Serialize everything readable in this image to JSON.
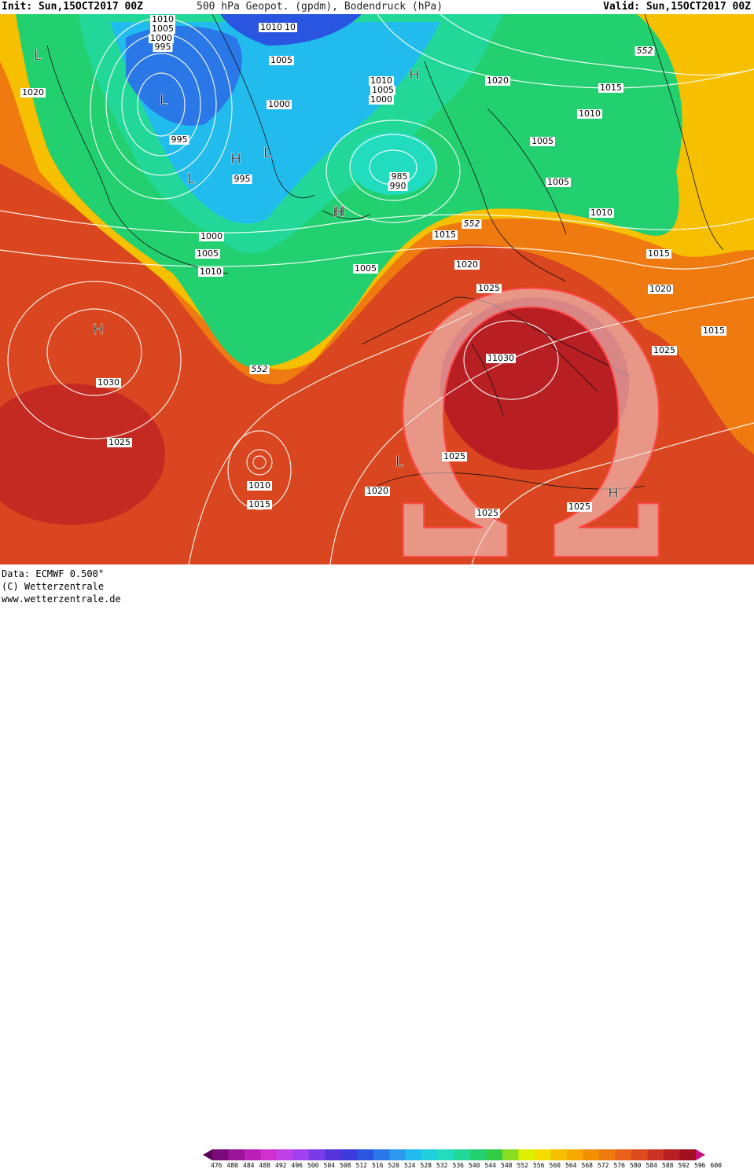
{
  "header": {
    "init": "Init: Sun,15OCT2017 00Z",
    "title": "500 hPa Geopot. (gpdm), Bodendruck (hPa)",
    "valid": "Valid: Sun,15OCT2017 00Z"
  },
  "footer": {
    "data": "Data: ECMWF  0.500°",
    "copyright": "(C) Wetterzentrale",
    "url": "www.wetterzentrale.de"
  },
  "colorbar": {
    "labels": [
      "476",
      "480",
      "484",
      "488",
      "492",
      "496",
      "500",
      "504",
      "508",
      "512",
      "516",
      "520",
      "524",
      "528",
      "532",
      "536",
      "540",
      "544",
      "548",
      "552",
      "556",
      "560",
      "564",
      "568",
      "572",
      "576",
      "580",
      "584",
      "588",
      "592",
      "596",
      "600"
    ],
    "colors": [
      "#5a005a",
      "#7a0a7a",
      "#9a159a",
      "#b820b8",
      "#d030d0",
      "#c040e8",
      "#a040f0",
      "#7a3ae8",
      "#5533dd",
      "#3a3add",
      "#2a55e0",
      "#2a77e8",
      "#2a99ee",
      "#22bbee",
      "#22d0dd",
      "#22dcc0",
      "#22d898",
      "#22d070",
      "#33cc44",
      "#88dd22",
      "#ddee00",
      "#f6dc00",
      "#f6c000",
      "#f6a800",
      "#f39000",
      "#ef7a10",
      "#e8601a",
      "#dd4a1e",
      "#cc3322",
      "#b81f22",
      "#a01020",
      "#cc1080"
    ]
  },
  "map": {
    "pressure_labels": [
      {
        "t": "1010"
      },
      {
        "t": "1005"
      },
      {
        "t": "1000"
      },
      {
        "t": "995"
      },
      {
        "t": "1010"
      },
      {
        "t": "1005"
      },
      {
        "t": "1020"
      },
      {
        "t": "1015"
      },
      {
        "t": "1010"
      },
      {
        "t": "1005"
      },
      {
        "t": "1000"
      },
      {
        "t": "995"
      },
      {
        "t": "1020"
      },
      {
        "t": "1000"
      },
      {
        "t": "990"
      },
      {
        "t": "995"
      },
      {
        "t": "1010"
      },
      {
        "t": "1005"
      },
      {
        "t": "985"
      },
      {
        "t": "990"
      },
      {
        "t": "1005"
      },
      {
        "t": "1000"
      },
      {
        "t": "1005"
      },
      {
        "t": "1010"
      },
      {
        "t": "1015"
      },
      {
        "t": "1010"
      },
      {
        "t": "1005"
      },
      {
        "t": "1015"
      },
      {
        "t": "1020"
      },
      {
        "t": "1025"
      },
      {
        "t": "1030"
      },
      {
        "t": "1015"
      },
      {
        "t": "1020"
      },
      {
        "t": "1025"
      },
      {
        "t": "1030"
      },
      {
        "t": "1025"
      },
      {
        "t": "1010"
      },
      {
        "t": "1015"
      },
      {
        "t": "1020"
      },
      {
        "t": "1025"
      },
      {
        "t": "1025"
      },
      {
        "t": "1025"
      },
      {
        "t": "1010"
      },
      {
        "t": "1030"
      }
    ],
    "geopot_labels": [
      "552",
      "552",
      "552"
    ],
    "high_low": [
      "L",
      "L",
      "L",
      "L",
      "H",
      "H",
      "H",
      "H",
      "L",
      "H",
      "H"
    ],
    "watermark_symbol": "Ω"
  }
}
